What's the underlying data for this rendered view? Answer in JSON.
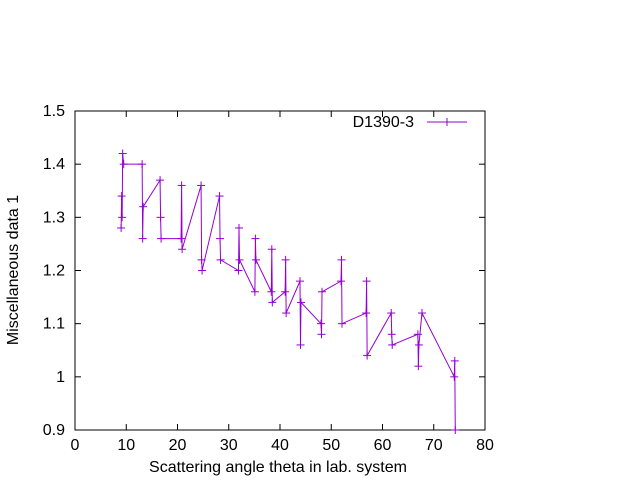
{
  "chart_data": {
    "type": "line",
    "xlabel": "Scattering angle theta in lab. system",
    "ylabel": "Miscellaneous data 1",
    "xlim": [
      0,
      80
    ],
    "ylim": [
      0.9,
      1.5
    ],
    "xticks": [
      0,
      10,
      20,
      30,
      40,
      50,
      60,
      70,
      80
    ],
    "xtick_labels": [
      "0",
      "10",
      "20",
      "30",
      "40",
      "50",
      "60",
      "70",
      "80"
    ],
    "yticks": [
      0.9,
      1.0,
      1.1,
      1.2,
      1.3,
      1.4,
      1.5
    ],
    "ytick_labels": [
      "0.9",
      "1",
      "1.1",
      "1.2",
      "1.3",
      "1.4",
      "1.5"
    ],
    "grid": false,
    "legend_position": "top-right",
    "color": "#9400d3",
    "series": [
      {
        "name": "D1390-3",
        "x": [
          9.0,
          9.1,
          9.2,
          9.3,
          9.5,
          13.1,
          13.2,
          13.3,
          16.6,
          16.7,
          16.8,
          20.7,
          20.8,
          20.9,
          24.6,
          24.7,
          24.8,
          28.2,
          28.3,
          28.4,
          31.9,
          32.0,
          32.1,
          35.1,
          35.2,
          35.3,
          38.3,
          38.4,
          38.5,
          41.0,
          41.1,
          41.2,
          43.9,
          44.0,
          44.1,
          48.0,
          48.1,
          48.2,
          51.9,
          52.0,
          52.1,
          56.8,
          56.9,
          57.0,
          61.7,
          61.8,
          61.9,
          66.9,
          67.0,
          67.1,
          67.7,
          74.0,
          74.1,
          74.2
        ],
        "y": [
          1.28,
          1.34,
          1.3,
          1.42,
          1.4,
          1.4,
          1.26,
          1.32,
          1.37,
          1.3,
          1.26,
          1.26,
          1.36,
          1.24,
          1.36,
          1.22,
          1.2,
          1.34,
          1.26,
          1.22,
          1.2,
          1.28,
          1.22,
          1.16,
          1.26,
          1.22,
          1.16,
          1.24,
          1.14,
          1.16,
          1.22,
          1.12,
          1.18,
          1.06,
          1.14,
          1.1,
          1.08,
          1.16,
          1.18,
          1.22,
          1.1,
          1.12,
          1.18,
          1.04,
          1.12,
          1.08,
          1.06,
          1.08,
          1.02,
          1.06,
          1.12,
          1.0,
          1.03,
          0.9
        ]
      }
    ]
  }
}
